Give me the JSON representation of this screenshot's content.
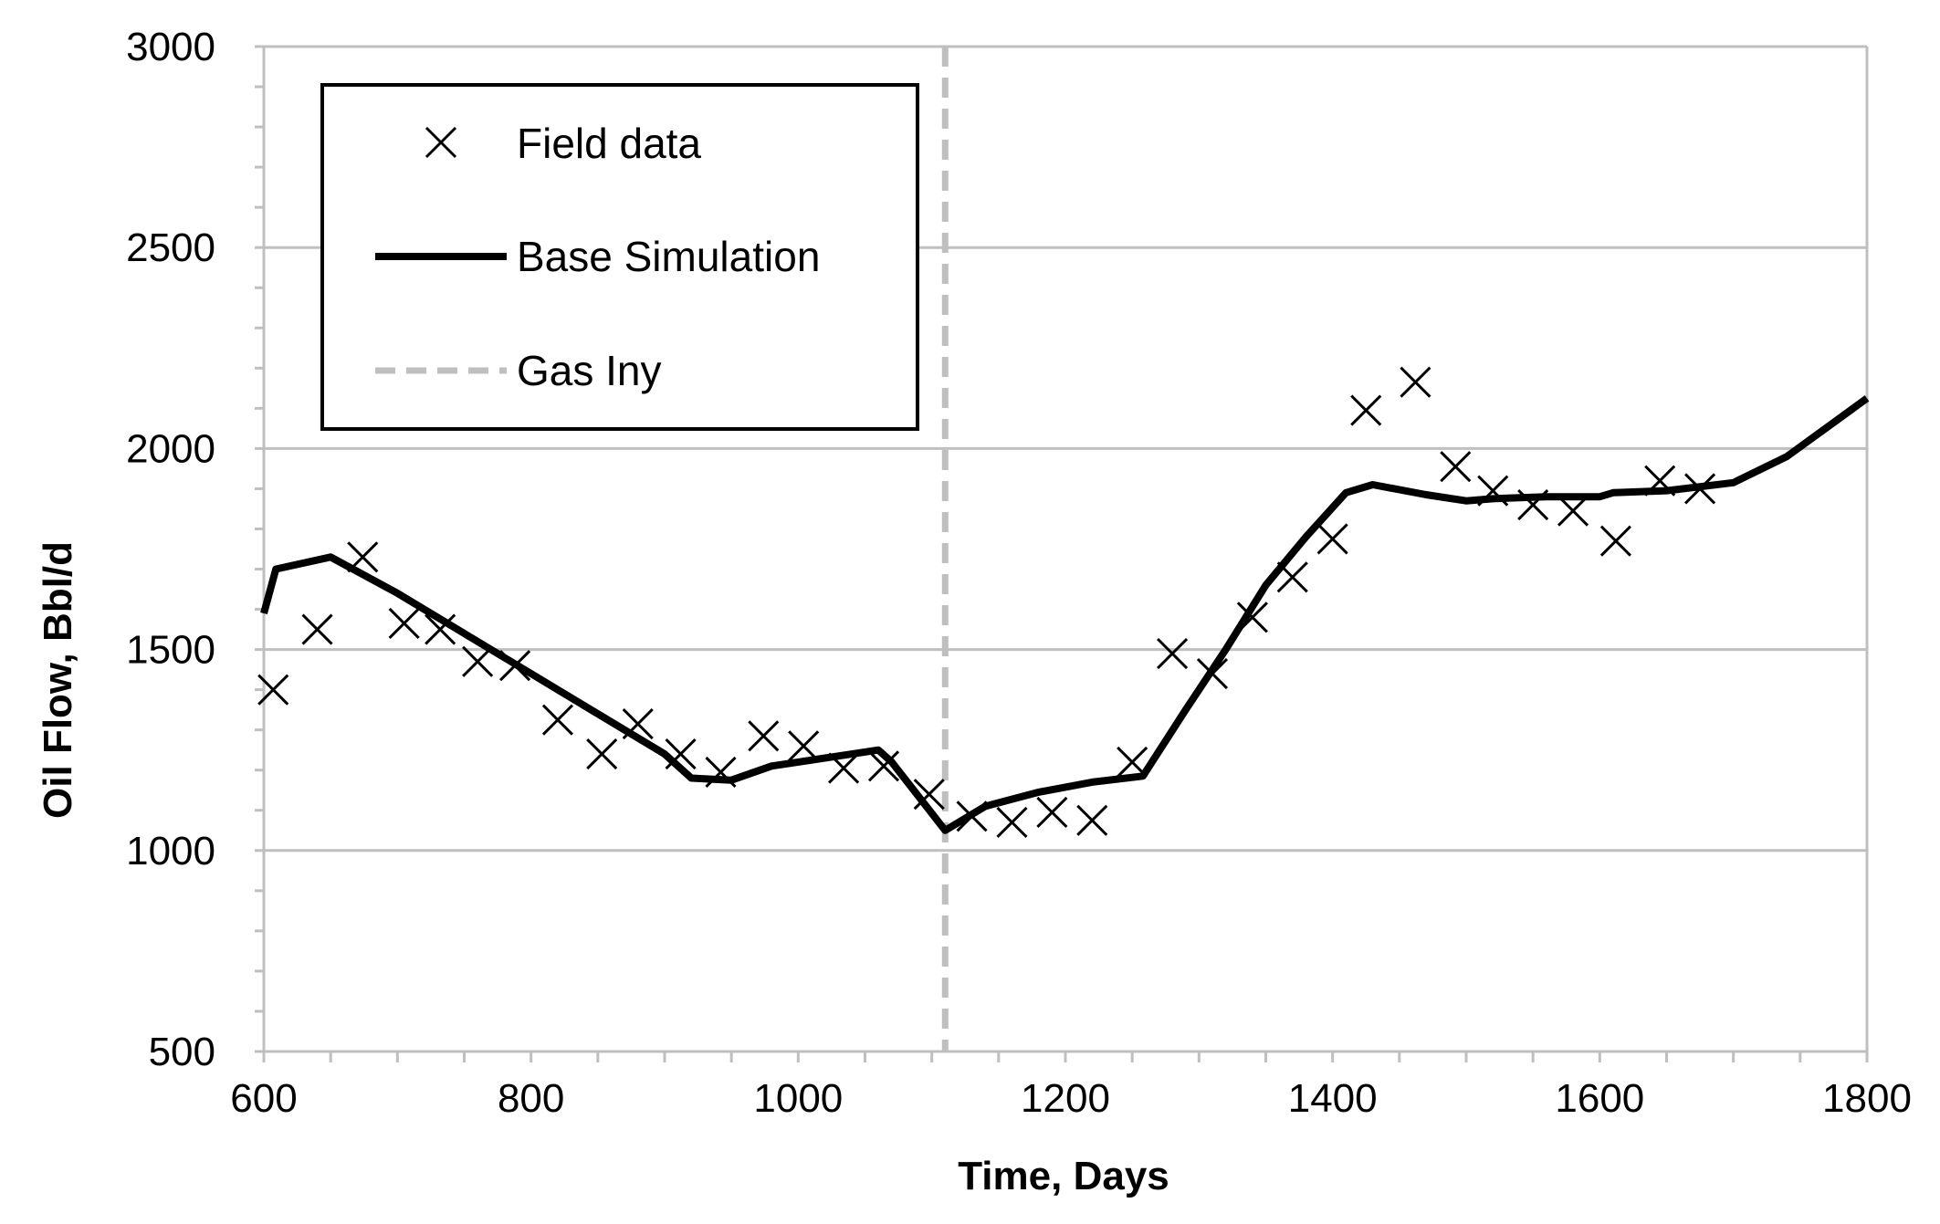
{
  "chart_data": {
    "type": "line",
    "title": "",
    "xlabel": "Time, Days",
    "ylabel": "Oil Flow, Bbl/d",
    "xlim": [
      600,
      1800
    ],
    "ylim": [
      500,
      3000
    ],
    "x_ticks": [
      600,
      800,
      1000,
      1200,
      1400,
      1600,
      1800
    ],
    "y_ticks": [
      500,
      1000,
      1500,
      2000,
      2500,
      3000
    ],
    "grid": "horizontal major",
    "legend": "top-left",
    "series": [
      {
        "name": "Field data",
        "style": "x-marker",
        "color": "#000000",
        "x": [
          607,
          640,
          674,
          705,
          732,
          760,
          788,
          820,
          853,
          880,
          912,
          942,
          974,
          1004,
          1034,
          1064,
          1098,
          1130,
          1160,
          1190,
          1220,
          1250,
          1280,
          1310,
          1340,
          1370,
          1400,
          1425,
          1462,
          1492,
          1520,
          1550,
          1580,
          1612,
          1645,
          1675
        ],
        "y": [
          1400,
          1550,
          1730,
          1565,
          1550,
          1470,
          1460,
          1325,
          1240,
          1315,
          1240,
          1195,
          1285,
          1260,
          1205,
          1210,
          1140,
          1085,
          1070,
          1095,
          1075,
          1220,
          1490,
          1440,
          1580,
          1680,
          1775,
          2095,
          2165,
          1955,
          1895,
          1860,
          1845,
          1770,
          1920,
          1900
        ]
      },
      {
        "name": "Base Simulation",
        "style": "solid-line",
        "color": "#000000",
        "x": [
          600,
          609,
          650,
          700,
          750,
          800,
          850,
          900,
          920,
          950,
          980,
          1000,
          1030,
          1060,
          1070,
          1110,
          1140,
          1180,
          1220,
          1258,
          1290,
          1320,
          1350,
          1380,
          1410,
          1430,
          1470,
          1500,
          1520,
          1560,
          1600,
          1610,
          1650,
          1700,
          1740,
          1800
        ],
        "y": [
          1590,
          1700,
          1730,
          1640,
          1540,
          1440,
          1340,
          1240,
          1180,
          1175,
          1210,
          1220,
          1235,
          1250,
          1220,
          1050,
          1110,
          1145,
          1170,
          1185,
          1350,
          1500,
          1660,
          1780,
          1890,
          1910,
          1885,
          1870,
          1875,
          1880,
          1880,
          1890,
          1895,
          1915,
          1980,
          2125
        ]
      },
      {
        "name": "Gas Iny",
        "style": "dashed-vertical-line",
        "color": "#bfbfbf",
        "x": [
          1110,
          1110
        ],
        "y": [
          500,
          3000
        ]
      }
    ]
  }
}
